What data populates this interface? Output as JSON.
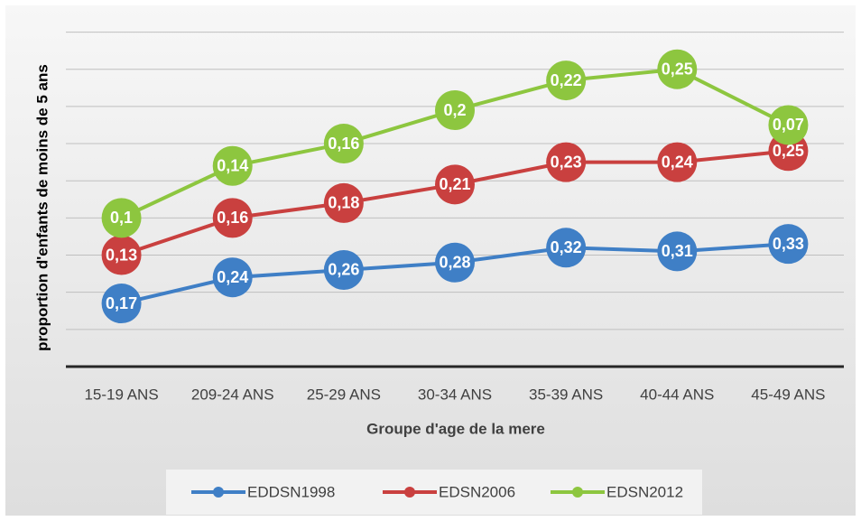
{
  "chart_data": {
    "type": "line",
    "stacked": true,
    "xlabel": "Groupe d'age de la mere",
    "ylabel": "proportion d'enfants de moins de 5 ans",
    "categories": [
      "15-19 ANS",
      "209-24 ANS",
      "25-29 ANS",
      "30-34  ANS",
      "35-39 ANS",
      "40-44 ANS",
      "45-49 ANS"
    ],
    "series": [
      {
        "name": "EDDSN1998",
        "color": "#3f7fc6",
        "values": [
          0.17,
          0.24,
          0.26,
          0.28,
          0.32,
          0.31,
          0.33
        ],
        "value_labels": [
          "0,17",
          "0,24",
          "0,26",
          "0,28",
          "0,32",
          "0,31",
          "0,33"
        ]
      },
      {
        "name": "EDSN2006",
        "color": "#c9403f",
        "values": [
          0.13,
          0.16,
          0.18,
          0.21,
          0.23,
          0.24,
          0.25
        ],
        "value_labels": [
          "0,13",
          "0,16",
          "0,18",
          "0,21",
          "0,23",
          "0,24",
          "0,25"
        ]
      },
      {
        "name": "EDSN2012",
        "color": "#8dc63f",
        "values": [
          0.1,
          0.14,
          0.16,
          0.2,
          0.22,
          0.25,
          0.07
        ],
        "value_labels": [
          "0,1",
          "0,14",
          "0,16",
          "0,2",
          "0,22",
          "0,25",
          "0,07"
        ]
      }
    ],
    "ylim": [
      0,
      0.95
    ],
    "yticks": [
      0,
      0.1,
      0.2,
      0.3,
      0.4,
      0.5,
      0.6,
      0.7,
      0.8,
      0.9
    ],
    "grid": true,
    "legend": "bottom"
  }
}
